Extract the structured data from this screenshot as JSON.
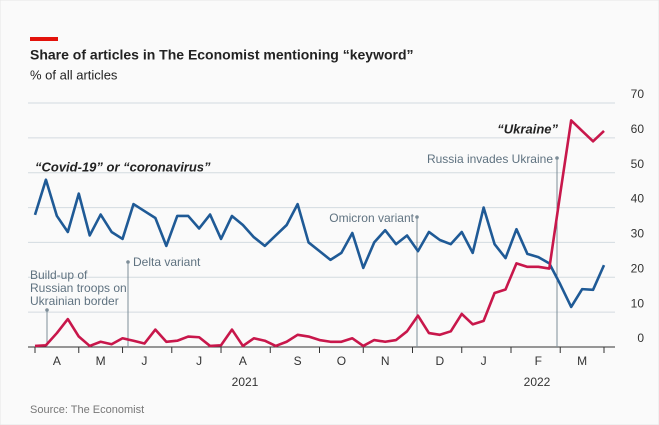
{
  "chart_data": {
    "type": "line",
    "title": "Share of articles in The Economist mentioning “keyword”",
    "subtitle": "% of all articles",
    "source": "Source: The Economist",
    "categories": [
      null,
      null,
      "A",
      null,
      null,
      null,
      "M",
      null,
      null,
      null,
      "J",
      null,
      null,
      null,
      null,
      "J",
      null,
      null,
      null,
      "A",
      null,
      null,
      null,
      null,
      "S",
      null,
      null,
      null,
      "O",
      null,
      null,
      null,
      "N",
      null,
      null,
      null,
      null,
      "D",
      null,
      null,
      null,
      "J",
      null,
      null,
      null,
      null,
      "F",
      null,
      null,
      null,
      "M",
      null,
      null
    ],
    "year_labels": [
      "2021",
      "2022"
    ],
    "series": [
      {
        "name": "“Covid-19” or “coronavirus”",
        "color": "#1f5a96",
        "values": [
          37.9,
          48,
          37.6,
          33,
          44,
          32,
          38,
          33,
          31,
          41,
          39,
          37,
          29,
          37.6,
          37.6,
          34,
          38,
          31,
          37.6,
          35,
          31.5,
          29,
          32,
          35,
          41,
          30,
          27.5,
          25,
          27,
          32.7,
          22.7,
          30,
          33.5,
          29.5,
          32,
          27.5,
          33,
          30.7,
          29.5,
          33,
          27,
          40,
          29.5,
          25.5,
          33.8,
          26.7,
          25.8,
          24,
          18,
          11.5,
          16.6,
          16.4,
          23.5
        ]
      },
      {
        "name": "“Ukraine”",
        "color": "#c8174b",
        "values": [
          0.3,
          0.5,
          4,
          8,
          3,
          0.3,
          1.5,
          0.8,
          2.5,
          1.8,
          1,
          5,
          1.5,
          1.8,
          3,
          2.8,
          0.3,
          0.5,
          5,
          0.3,
          2.5,
          1.8,
          0.3,
          1.5,
          3.5,
          3,
          2,
          1.5,
          1.5,
          2.5,
          0.3,
          2,
          1.5,
          2,
          4.5,
          9,
          4,
          3.5,
          4.5,
          9.5,
          6.5,
          7.5,
          15.5,
          16.5,
          24,
          23,
          23,
          22.5,
          44,
          65,
          62,
          59,
          62
        ]
      }
    ],
    "annotations": [
      {
        "lines": [
          "Build-up of",
          "Russian troops on",
          "Ukrainian border"
        ]
      },
      {
        "lines": [
          "Delta variant"
        ]
      },
      {
        "lines": [
          "Omicron variant"
        ]
      },
      {
        "lines": [
          "Russia invades Ukraine"
        ]
      }
    ],
    "ylim": [
      0,
      70
    ],
    "yticks": [
      0,
      10,
      20,
      30,
      40,
      50,
      60,
      70
    ],
    "grid": true
  }
}
